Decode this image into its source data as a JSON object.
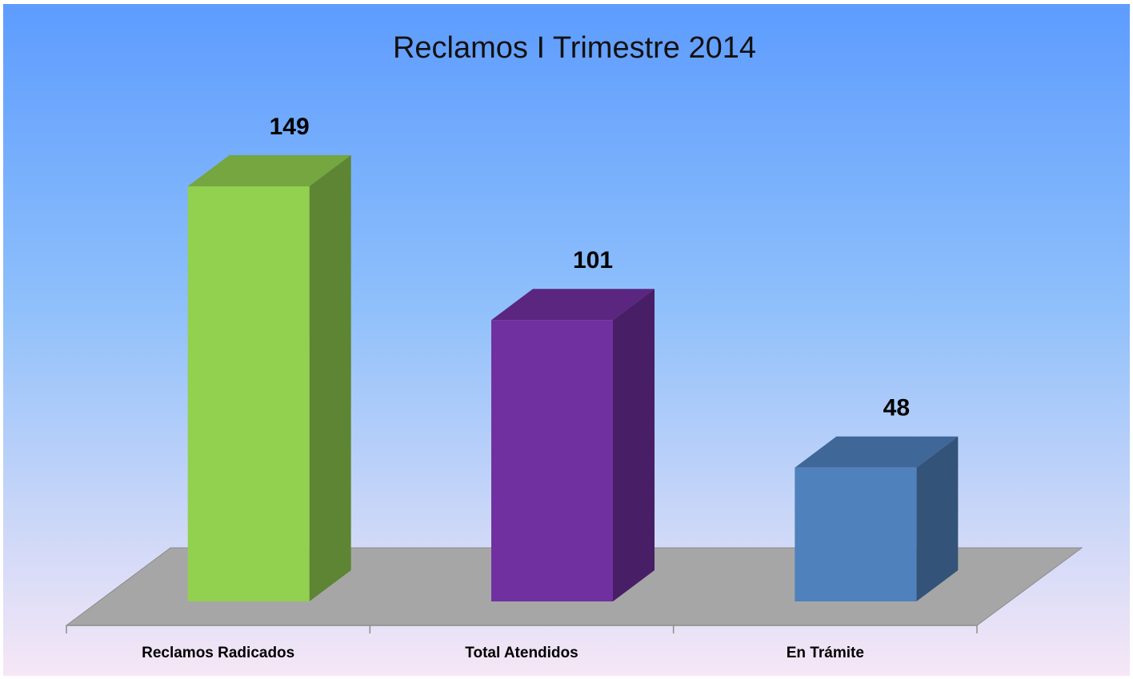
{
  "chart_data": {
    "type": "bar3d",
    "title": "Reclamos I Trimestre 2014",
    "categories": [
      "Reclamos Radicados",
      "Total Atendidos",
      "En Trámite"
    ],
    "values": [
      149,
      101,
      48
    ],
    "colors": [
      "#92d050",
      "#7030a0",
      "#4f81bd"
    ]
  }
}
